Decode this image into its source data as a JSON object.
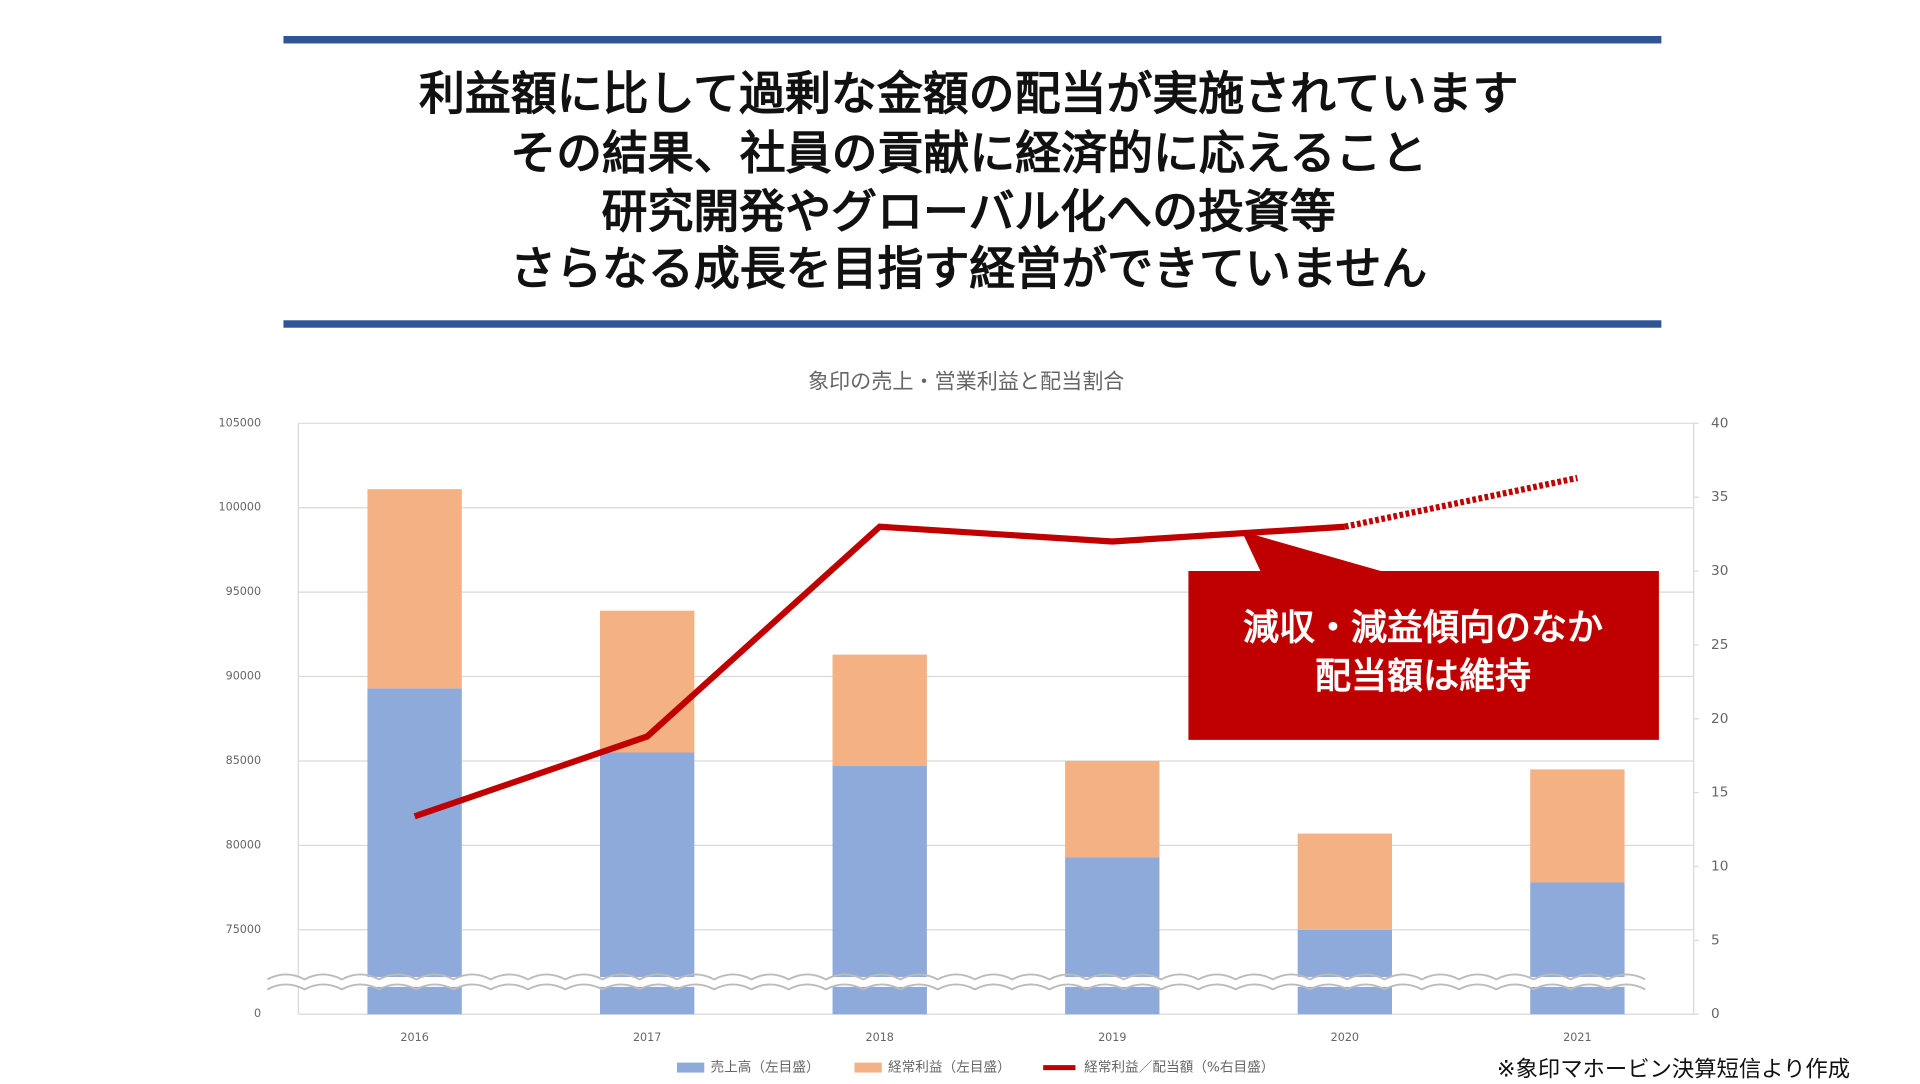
{
  "header": {
    "lines": [
      "利益額に比して過剰な金額の配当が実施されています",
      "その結果、社員の貢献に経済的に応えること",
      "研究開発やグローバル化への投資等",
      "さらなる成長を目指す経営ができていません"
    ]
  },
  "chart_data": {
    "type": "bar",
    "stacked": true,
    "title": "象印の売上・営業利益と配当割合",
    "categories": [
      "2016",
      "2017",
      "2018",
      "2019",
      "2020",
      "2021"
    ],
    "series": [
      {
        "name": "売上高（左目盛）",
        "color": "#8eaadb",
        "values": [
          89300,
          85500,
          84700,
          79300,
          75000,
          77800
        ]
      },
      {
        "name": "経常利益（左目盛）",
        "color": "#f4b183",
        "values": [
          11800,
          8400,
          6600,
          5700,
          5700,
          6700
        ]
      },
      {
        "name": "経常利益／配当額（%右目盛）",
        "color": "#c00000",
        "type": "line",
        "axis": "y2",
        "dashed_last_segment": true,
        "values": [
          13.4,
          18.8,
          33.0,
          32.0,
          33.0,
          36.3
        ]
      }
    ],
    "ylim": [
      0,
      105000
    ],
    "yticks": [
      0,
      75000,
      80000,
      85000,
      90000,
      95000,
      100000,
      105000
    ],
    "axis_break": true,
    "y2lim": [
      0,
      40
    ],
    "y2ticks": [
      0,
      5,
      10,
      15,
      20,
      25,
      30,
      35,
      40
    ],
    "grid": true,
    "legend": "bottom",
    "annotation": [
      "減収・減益傾向のなか",
      "配当額は維持"
    ],
    "source": "※象印マホービン決算短信より作成"
  }
}
